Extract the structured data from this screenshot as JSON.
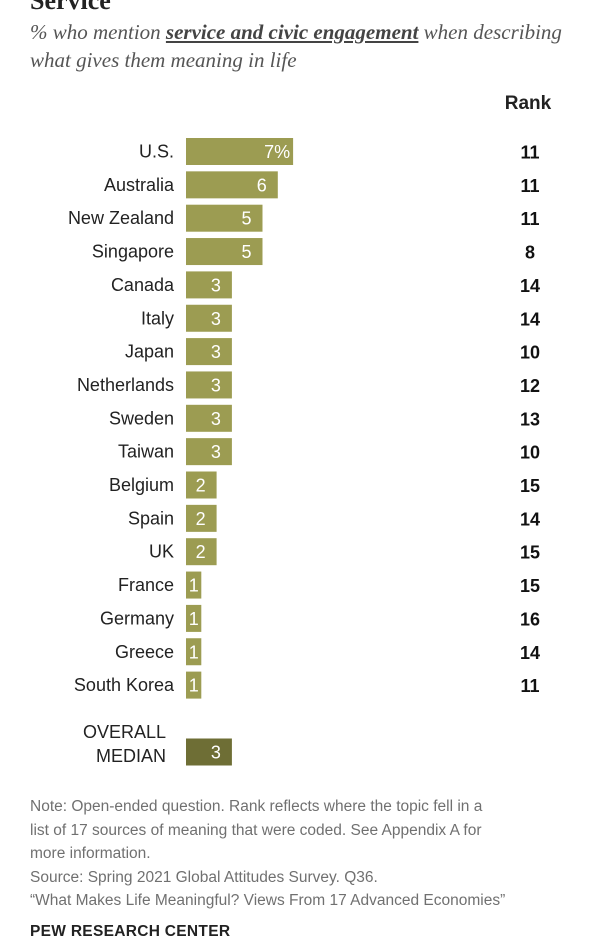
{
  "title_fragment": "Service",
  "subtitle": {
    "before": "% who mention ",
    "highlight": "service and civic engagement",
    "after": " when describing what gives them meaning in life"
  },
  "rank_header": "Rank",
  "colors": {
    "bar": "#9c9c52",
    "median_bar": "#6e6e35",
    "bar_label": "#ffffff"
  },
  "chart_data": {
    "type": "bar",
    "orientation": "horizontal",
    "categories": [
      "U.S.",
      "Australia",
      "New Zealand",
      "Singapore",
      "Canada",
      "Italy",
      "Japan",
      "Netherlands",
      "Sweden",
      "Taiwan",
      "Belgium",
      "Spain",
      "UK",
      "France",
      "Germany",
      "Greece",
      "South Korea"
    ],
    "values": [
      7,
      6,
      5,
      5,
      3,
      3,
      3,
      3,
      3,
      3,
      2,
      2,
      2,
      1,
      1,
      1,
      1
    ],
    "value_labels": [
      "7%",
      "6",
      "5",
      "5",
      "3",
      "3",
      "3",
      "3",
      "3",
      "3",
      "2",
      "2",
      "2",
      "1",
      "1",
      "1",
      "1"
    ],
    "rank": [
      "11",
      "11",
      "11",
      "8",
      "14",
      "14",
      "10",
      "12",
      "13",
      "10",
      "15",
      "14",
      "15",
      "15",
      "16",
      "14",
      "11"
    ],
    "median": {
      "label_lines": [
        "OVERALL",
        "MEDIAN"
      ],
      "value": 3,
      "value_label": "3"
    },
    "unit": "%"
  },
  "notes": [
    "Note: Open-ended question. Rank reflects where the topic fell in a",
    "list of 17 sources of meaning that were coded. See Appendix A for",
    "more information.",
    "Source: Spring 2021 Global Attitudes Survey. Q36.",
    "“What Makes Life Meaningful? Views From 17 Advanced Economies”"
  ],
  "brand": "PEW RESEARCH CENTER"
}
